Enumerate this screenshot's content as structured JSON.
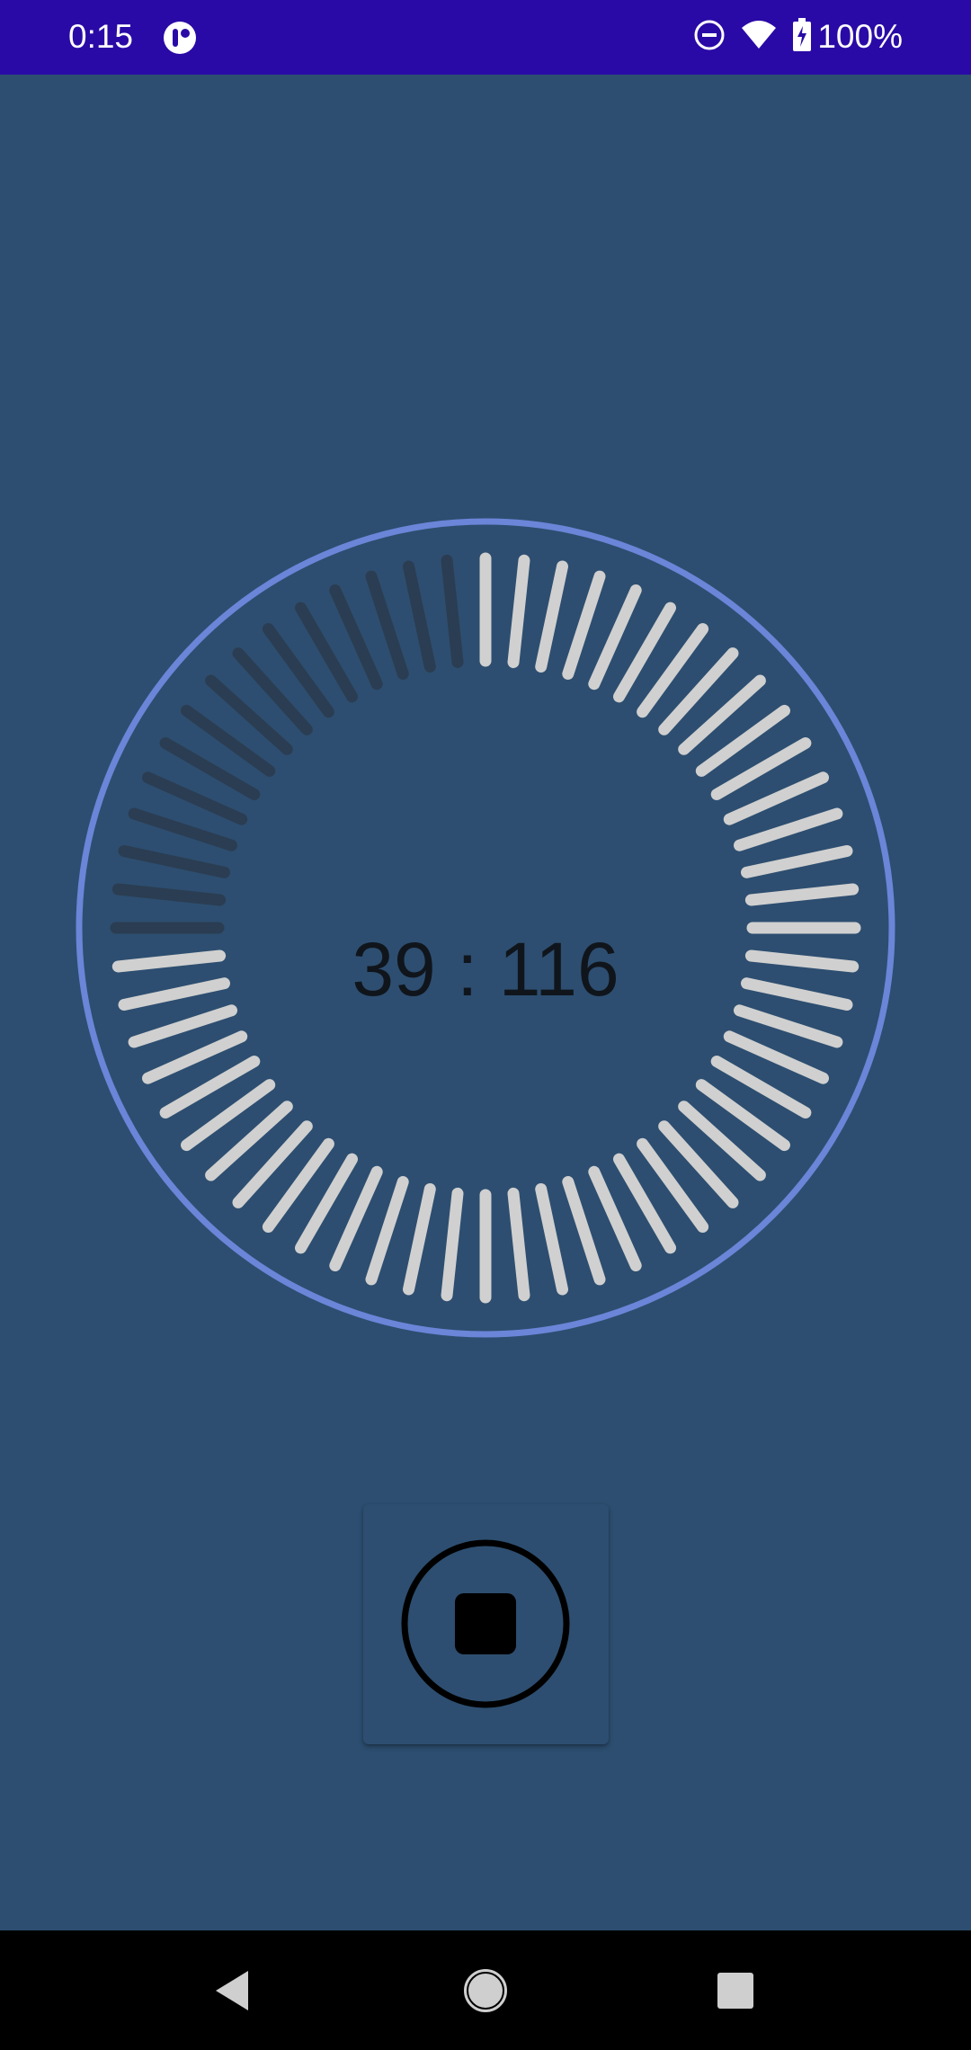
{
  "status_bar": {
    "time": "0:15",
    "battery": "100%",
    "icons": [
      "app-notification-icon",
      "do-not-disturb-icon",
      "wifi-icon",
      "battery-charging-icon"
    ]
  },
  "timer": {
    "display": "39 : 116",
    "progress": {
      "total_ticks": 60,
      "elapsed_ticks": 15,
      "remaining_fraction": 0.75
    }
  },
  "controls": {
    "stop_button": "stop-icon"
  },
  "nav_bar": {
    "items": [
      "back",
      "home",
      "recents"
    ]
  },
  "colors": {
    "status_bar": "#2a0aa6",
    "background": "#2d4e70",
    "ring": "#6b85d8",
    "tick_active": "#d0d0d0",
    "tick_inactive": "#2b3d52",
    "timer_text": "#10151c"
  }
}
